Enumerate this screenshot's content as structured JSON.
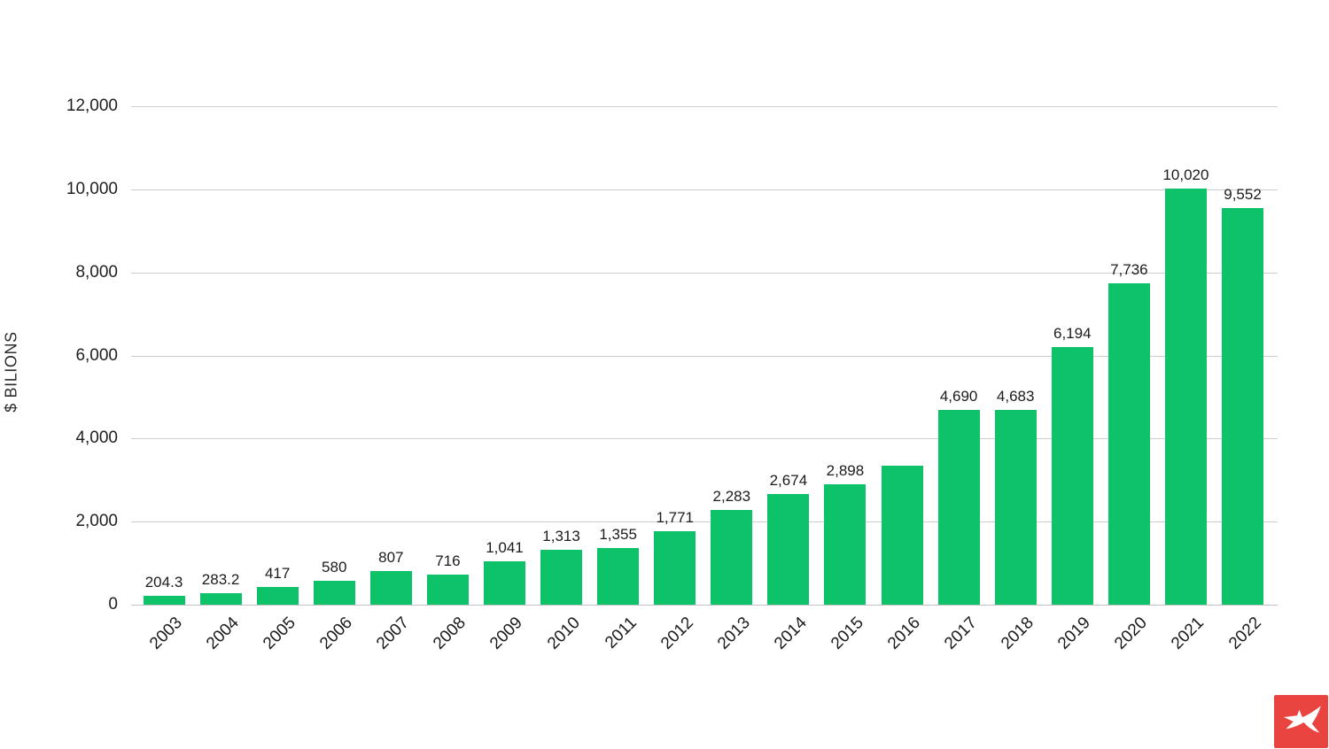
{
  "chart_data": {
    "type": "bar",
    "title": "",
    "xlabel": "",
    "ylabel": "$ BILIONS",
    "ylim": [
      0,
      12000
    ],
    "yticks": [
      0,
      2000,
      4000,
      6000,
      8000,
      10000,
      12000
    ],
    "ytick_labels": [
      "0",
      "2,000",
      "4,000",
      "6,000",
      "8,000",
      "10,000",
      "12,000"
    ],
    "grid": "horizontal",
    "legend": "none",
    "categories": [
      "2003",
      "2004",
      "2005",
      "2006",
      "2007",
      "2008",
      "2009",
      "2010",
      "2011",
      "2012",
      "2013",
      "2014",
      "2015",
      "2016",
      "2017",
      "2018",
      "2019",
      "2020",
      "2021",
      "2022"
    ],
    "values": [
      204.3,
      283.2,
      417,
      580,
      807,
      716,
      1041,
      1313,
      1355,
      1771,
      2283,
      2674,
      2898,
      3350,
      4690,
      4683,
      6194,
      7736,
      10020,
      9552
    ],
    "bar_labels": [
      "204.3",
      "283.2",
      "417",
      "580",
      "807",
      "716",
      "1,041",
      "1,313",
      "1,355",
      "1,771",
      "2,283",
      "2,674",
      "2,898",
      "",
      "4,690",
      "4,683",
      "6,194",
      "7,736",
      "10,020",
      "9,552"
    ],
    "bar_color": "#0dc268"
  },
  "colors": {
    "bar_green": "#0dc268",
    "grid_gray": "#cecece",
    "text_dark": "#1b1b1b",
    "logo_red": "#e94440",
    "logo_glyph_white": "#ffffff"
  },
  "logo": {
    "name": "xtb-logo"
  }
}
